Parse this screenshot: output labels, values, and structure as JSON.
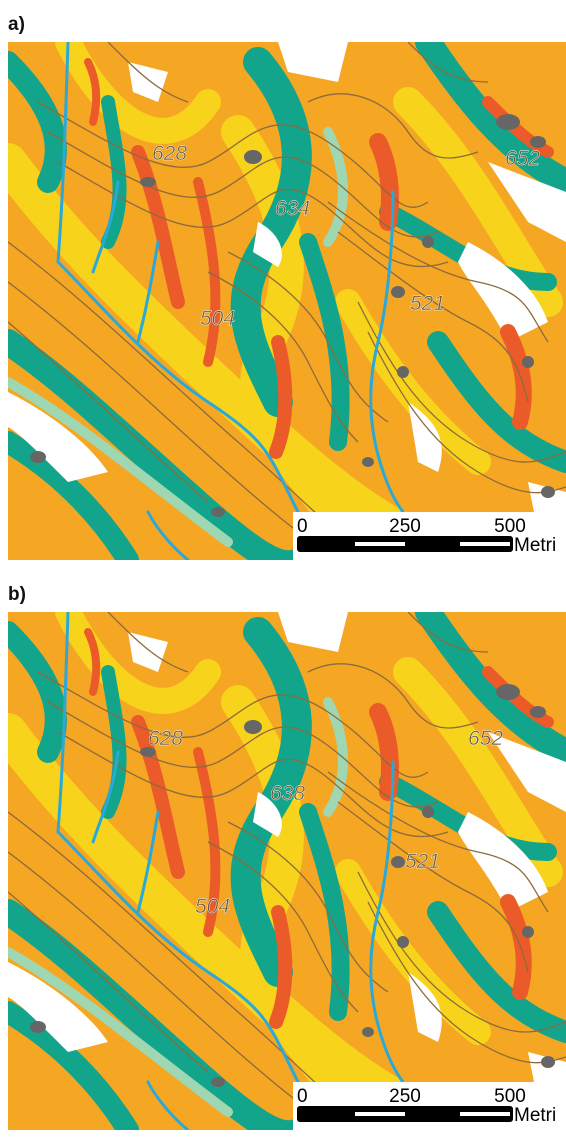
{
  "panels": [
    {
      "label": "a)",
      "contour_labels": [
        "628",
        "634",
        "652",
        "504",
        "521"
      ],
      "scale_bar": {
        "ticks": [
          "0",
          "250",
          "500"
        ],
        "unit": "Metri"
      }
    },
    {
      "label": "b)",
      "contour_labels": [
        "628",
        "638",
        "652",
        "504",
        "521"
      ],
      "scale_bar": {
        "ticks": [
          "0",
          "250",
          "500"
        ],
        "unit": "Metri"
      }
    }
  ]
}
